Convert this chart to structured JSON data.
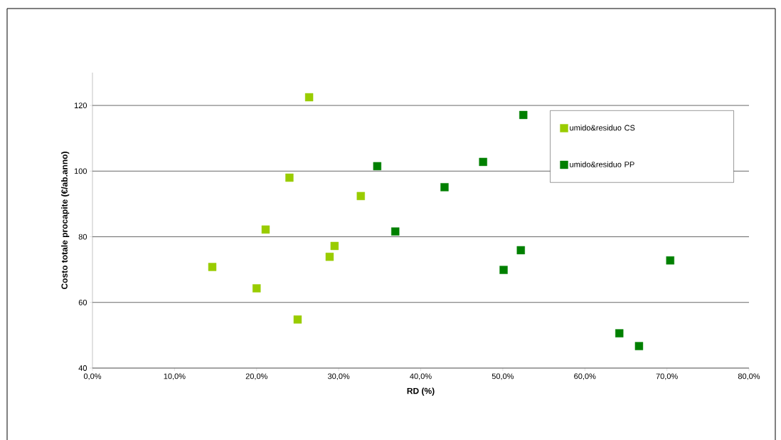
{
  "chart_data": {
    "type": "scatter",
    "xlabel": "RD (%)",
    "ylabel": "Costo totale procapite (€/ab.anno)",
    "xlim": [
      0,
      80
    ],
    "ylim": [
      40,
      130
    ],
    "xticks": [
      {
        "value": 0,
        "label": "0,0%"
      },
      {
        "value": 10,
        "label": "10,0%"
      },
      {
        "value": 20,
        "label": "20,0%"
      },
      {
        "value": 30,
        "label": "30,0%"
      },
      {
        "value": 40,
        "label": "40,0%"
      },
      {
        "value": 50,
        "label": "50,0%"
      },
      {
        "value": 60,
        "label": "60,0%"
      },
      {
        "value": 70,
        "label": "70,0%"
      },
      {
        "value": 80,
        "label": "80,0%"
      }
    ],
    "yticks": [
      40,
      60,
      80,
      100,
      120
    ],
    "grid": "y",
    "legend": "right",
    "marker": "square",
    "series": [
      {
        "name": "umido&residuo CS",
        "color": "#99cc00",
        "x": [
          14.6,
          20.0,
          21.1,
          24.0,
          25.0,
          26.4,
          28.9,
          29.5,
          32.7
        ],
        "values": [
          70.8,
          64.3,
          82.2,
          98.0,
          54.8,
          122.5,
          73.9,
          77.2,
          92.4
        ]
      },
      {
        "name": "umido&residuo PP",
        "color": "#008000",
        "x": [
          34.7,
          36.9,
          42.9,
          47.6,
          50.1,
          52.2,
          52.5,
          64.2,
          66.6,
          70.4
        ],
        "values": [
          101.5,
          81.6,
          95.1,
          102.8,
          69.9,
          75.9,
          117.1,
          50.6,
          46.7,
          72.8
        ]
      }
    ]
  }
}
